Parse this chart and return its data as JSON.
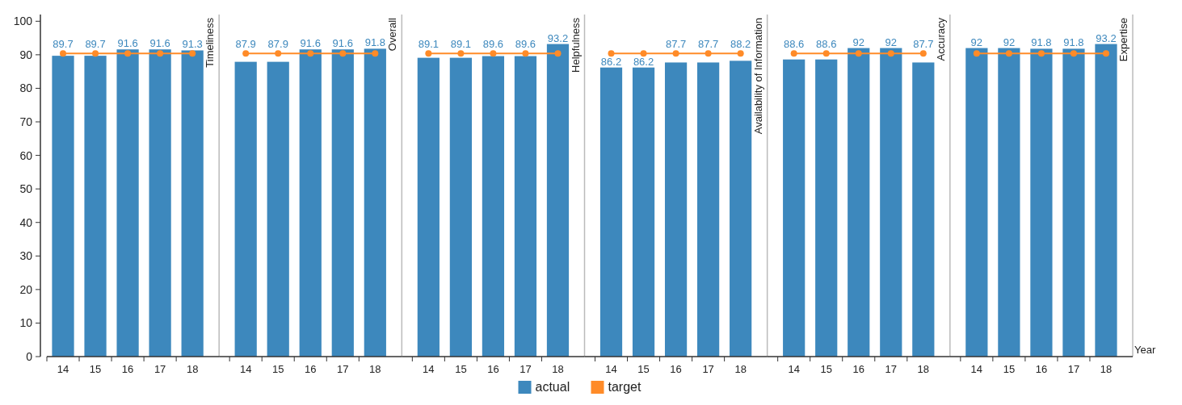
{
  "chart_data": [
    {
      "type": "bar",
      "title": "Timeliness",
      "categories": [
        "14",
        "15",
        "16",
        "17",
        "18"
      ],
      "ylim": [
        0,
        102
      ],
      "yticks": [
        0,
        10,
        20,
        30,
        40,
        50,
        60,
        70,
        80,
        90,
        100
      ],
      "legend": "bottom",
      "marker": "circle",
      "series": [
        {
          "name": "actual",
          "color": "#3d88bd",
          "values": [
            89.7,
            89.7,
            91.6,
            91.6,
            91.3
          ],
          "value_labels": [
            "89.7",
            "89.7",
            "91.6",
            "91.6",
            "91.3"
          ]
        },
        {
          "name": "target",
          "type": "line",
          "color": "#ff8b28",
          "values": [
            90.4,
            90.4,
            90.4,
            90.4,
            90.4
          ]
        }
      ]
    },
    {
      "type": "bar",
      "title": "Overall",
      "categories": [
        "14",
        "15",
        "16",
        "17",
        "18"
      ],
      "ylim": [
        0,
        102
      ],
      "tick_labels": "x",
      "marker": "circle",
      "series": [
        {
          "name": "actual",
          "color": "#3d88bd",
          "values": [
            87.9,
            87.9,
            91.6,
            91.6,
            91.8
          ],
          "value_labels": [
            "87.9",
            "87.9",
            "91.6",
            "91.6",
            "91.8"
          ]
        },
        {
          "name": "target",
          "type": "line",
          "color": "#ff8b28",
          "values": [
            90.4,
            90.4,
            90.4,
            90.4,
            90.4
          ]
        }
      ]
    },
    {
      "type": "bar",
      "title": "Helpfulness",
      "categories": [
        "14",
        "15",
        "16",
        "17",
        "18"
      ],
      "ylim": [
        0,
        102
      ],
      "tick_labels": "x",
      "marker": "circle",
      "series": [
        {
          "name": "actual",
          "color": "#3d88bd",
          "values": [
            89.1,
            89.1,
            89.6,
            89.6,
            93.2
          ],
          "value_labels": [
            "89.1",
            "89.1",
            "89.6",
            "89.6",
            "93.2"
          ]
        },
        {
          "name": "target",
          "type": "line",
          "color": "#ff8b28",
          "values": [
            90.4,
            90.4,
            90.4,
            90.4,
            90.4
          ]
        }
      ]
    },
    {
      "type": "bar",
      "title": "Availability of Information",
      "categories": [
        "14",
        "15",
        "16",
        "17",
        "18"
      ],
      "ylim": [
        0,
        102
      ],
      "tick_labels": "x",
      "marker": "circle",
      "series": [
        {
          "name": "actual",
          "color": "#3d88bd",
          "values": [
            86.2,
            86.2,
            87.7,
            87.7,
            88.2
          ],
          "value_labels": [
            "86.2",
            "86.2",
            "87.7",
            "87.7",
            "88.2"
          ]
        },
        {
          "name": "target",
          "type": "line",
          "color": "#ff8b28",
          "values": [
            90.4,
            90.4,
            90.4,
            90.4,
            90.4
          ]
        }
      ]
    },
    {
      "type": "bar",
      "title": "Accuracy",
      "categories": [
        "14",
        "15",
        "16",
        "17",
        "18"
      ],
      "ylim": [
        0,
        102
      ],
      "tick_labels": "x",
      "marker": "circle",
      "series": [
        {
          "name": "actual",
          "color": "#3d88bd",
          "values": [
            88.6,
            88.6,
            92,
            92,
            87.7
          ],
          "value_labels": [
            "88.6",
            "88.6",
            "92",
            "92",
            "87.7"
          ]
        },
        {
          "name": "target",
          "type": "line",
          "color": "#ff8b28",
          "values": [
            90.4,
            90.4,
            90.4,
            90.4,
            90.4
          ]
        }
      ]
    },
    {
      "type": "bar",
      "title": "Expertise",
      "xlabel": "Year",
      "categories": [
        "14",
        "15",
        "16",
        "17",
        "18"
      ],
      "ylim": [
        0,
        102
      ],
      "tick_labels": "x",
      "marker": "circle",
      "series": [
        {
          "name": "actual",
          "color": "#3d88bd",
          "values": [
            92,
            92,
            91.8,
            91.8,
            93.2
          ],
          "value_labels": [
            "92",
            "92",
            "91.8",
            "91.8",
            "93.2"
          ]
        },
        {
          "name": "target",
          "type": "line",
          "color": "#ff8b28",
          "values": [
            90.4,
            90.4,
            90.4,
            90.4,
            90.4
          ]
        }
      ]
    }
  ]
}
